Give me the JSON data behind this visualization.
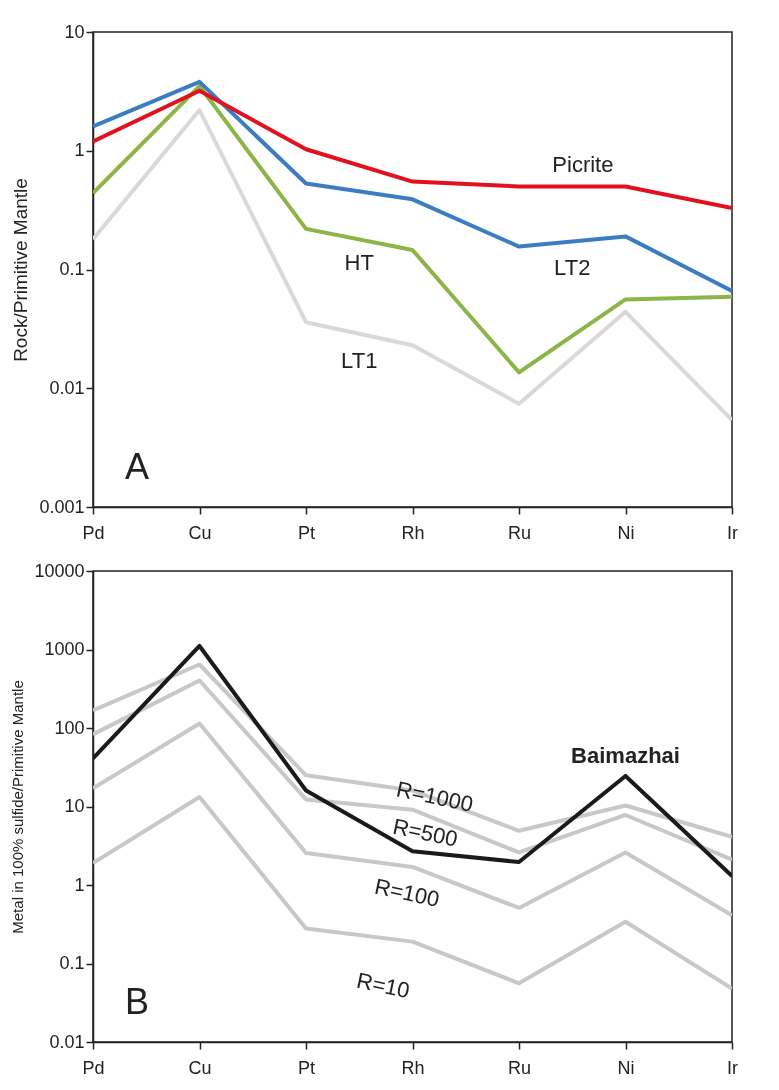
{
  "chart_data": [
    {
      "type": "line",
      "ylabel": "Rock/Primitive Mantle",
      "categories": [
        "Pd",
        "Cu",
        "Pt",
        "Rh",
        "Ru",
        "Ni",
        "Ir"
      ],
      "log": true,
      "ylim": [
        0.001,
        10
      ],
      "yticks": [
        0.001,
        0.01,
        0.1,
        1,
        10
      ],
      "series": [
        {
          "name": "LT1",
          "color": "#d9d9d9",
          "values": [
            0.18,
            2.2,
            0.036,
            0.023,
            0.0074,
            0.044,
            0.0054
          ]
        },
        {
          "name": "HT",
          "color": "#8db446",
          "values": [
            0.44,
            3.5,
            0.22,
            0.146,
            0.0136,
            0.056,
            0.059
          ]
        },
        {
          "name": "LT2",
          "color": "#3b7dc4",
          "values": [
            1.6,
            3.8,
            0.53,
            0.39,
            0.156,
            0.19,
            0.066
          ]
        },
        {
          "name": "Picrite",
          "color": "#e3101e",
          "values": [
            1.2,
            3.2,
            1.03,
            0.55,
            0.5,
            0.5,
            0.33
          ]
        }
      ],
      "annotations": [
        "A"
      ]
    },
    {
      "type": "line",
      "ylabel": "Metal in 100% sulfide/Primitive Mantle",
      "categories": [
        "Pd",
        "Cu",
        "Pt",
        "Rh",
        "Ru",
        "Ni",
        "Ir"
      ],
      "log": true,
      "ylim": [
        0.01,
        10000
      ],
      "yticks": [
        0.01,
        0.1,
        1,
        10,
        100,
        1000,
        10000
      ],
      "series": [
        {
          "name": "R=1000",
          "color": "#c8c8c8",
          "values": [
            167,
            644,
            25,
            16,
            4.9,
            10.3,
            4.1
          ]
        },
        {
          "name": "R=500",
          "color": "#c8c8c8",
          "values": [
            83,
            403,
            12.3,
            9.1,
            2.6,
            7.8,
            2.1
          ]
        },
        {
          "name": "R=100",
          "color": "#c8c8c8",
          "values": [
            17,
            114,
            2.56,
            1.7,
            0.51,
            2.6,
            0.41
          ]
        },
        {
          "name": "R=10",
          "color": "#c8c8c8",
          "values": [
            1.9,
            13.2,
            0.28,
            0.19,
            0.056,
            0.34,
            0.048
          ]
        },
        {
          "name": "Baimazhai",
          "color": "#1a1a1a",
          "values": [
            41,
            1110,
            16,
            2.7,
            1.96,
            24.5,
            1.3
          ]
        }
      ],
      "annotations": [
        "B"
      ]
    }
  ]
}
